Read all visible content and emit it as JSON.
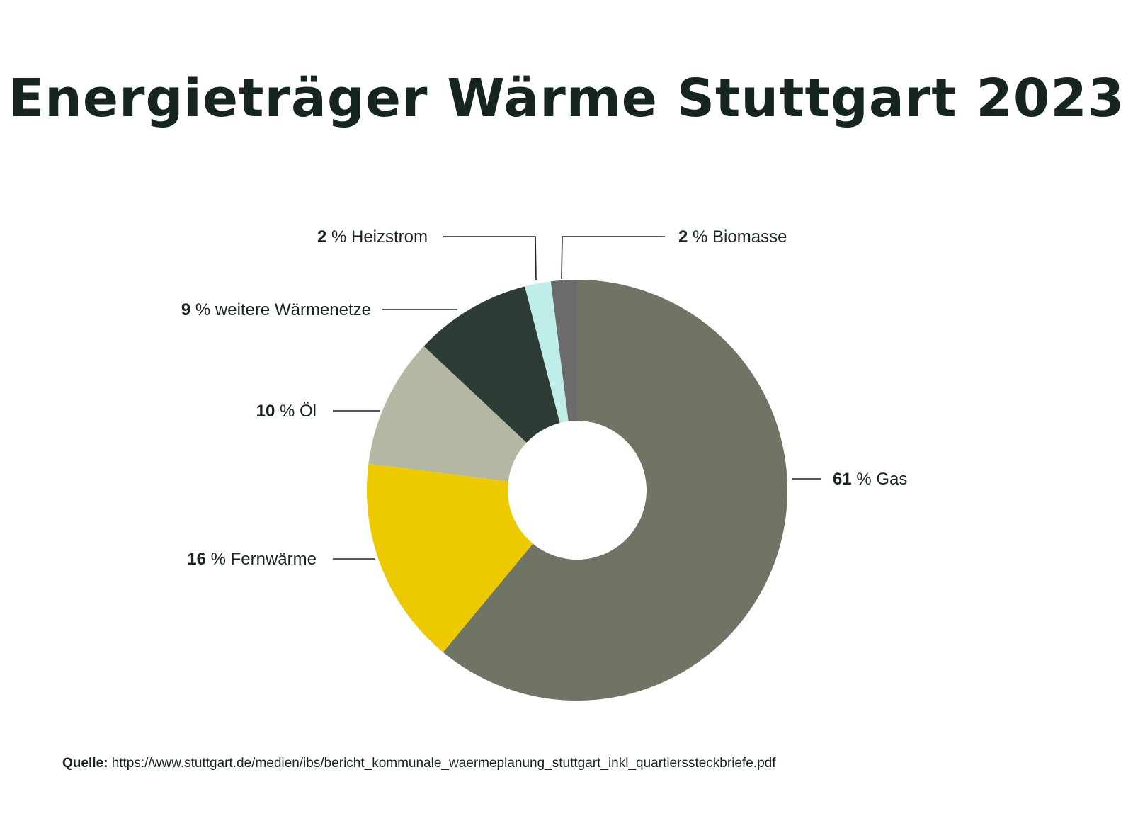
{
  "source": {
    "label": "Quelle:",
    "url": "https://www.stuttgart.de/medien/ibs/bericht_kommunale_waermeplanung_stuttgart_inkl_quartierssteckbriefe.pdf"
  },
  "chart_data": {
    "type": "pie",
    "style": "donut",
    "title": "Energieträger Wärme Stuttgart 2023",
    "unit": "%",
    "start_angle_deg": 0,
    "direction": "clockwise",
    "slices": [
      {
        "label": "Gas",
        "value": 61,
        "pct_text": "61",
        "color": "#6f7465"
      },
      {
        "label": "Fernwärme",
        "value": 16,
        "pct_text": "16",
        "color": "#edc900"
      },
      {
        "label": "Öl",
        "value": 10,
        "pct_text": "10",
        "color": "#b4b8a3"
      },
      {
        "label": "weitere Wärmenetze",
        "value": 9,
        "pct_text": "9",
        "color": "#2d3c35"
      },
      {
        "label": "Heizstrom",
        "value": 2,
        "pct_text": "2",
        "color": "#bfeee8"
      },
      {
        "label": "Biomasse",
        "value": 2,
        "pct_text": "2",
        "color": "#6a6b6a"
      }
    ]
  }
}
